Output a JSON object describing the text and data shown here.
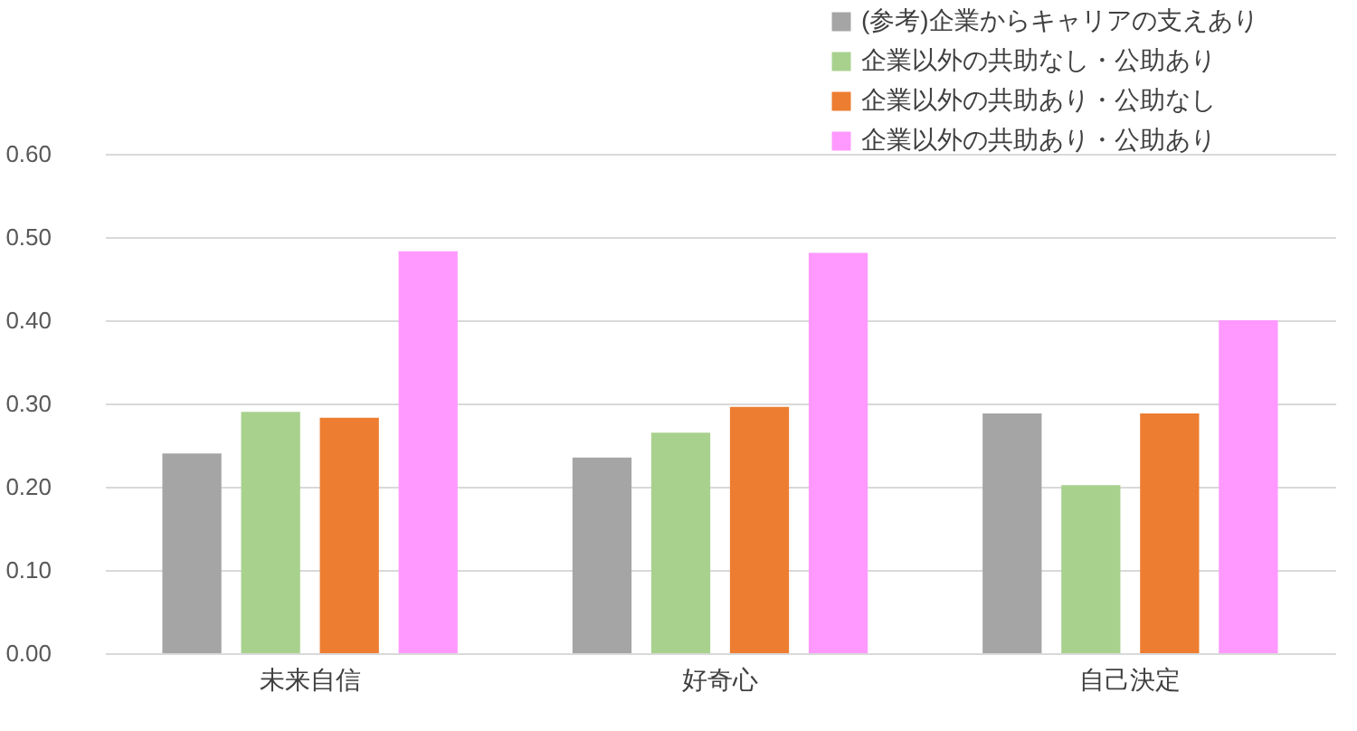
{
  "chart_data": {
    "type": "bar",
    "categories": [
      "未来自信",
      "好奇心",
      "自己決定"
    ],
    "series": [
      {
        "name": "(参考)企業からキャリアの支えあり",
        "color": "#a5a5a5",
        "values": [
          0.24,
          0.235,
          0.288
        ]
      },
      {
        "name": "企業以外の共助なし・公助あり",
        "color": "#a9d18e",
        "values": [
          0.29,
          0.265,
          0.202
        ]
      },
      {
        "name": "企業以外の共助あり・公助なし",
        "color": "#ed7d31",
        "values": [
          0.283,
          0.296,
          0.288
        ]
      },
      {
        "name": "企業以外の共助あり・公助あり",
        "color": "#ff99ff",
        "values": [
          0.483,
          0.481,
          0.4
        ]
      }
    ],
    "ylim": [
      0,
      0.6
    ],
    "yticks": [
      {
        "value": 0,
        "label": "0.00"
      },
      {
        "value": 0.1,
        "label": "0.10"
      },
      {
        "value": 0.2,
        "label": "0.20"
      },
      {
        "value": 0.3,
        "label": "0.30"
      },
      {
        "value": 0.4,
        "label": "0.40"
      },
      {
        "value": 0.5,
        "label": "0.50"
      },
      {
        "value": 0.6,
        "label": "0.60"
      }
    ],
    "grid": "y",
    "legend": "top right"
  }
}
